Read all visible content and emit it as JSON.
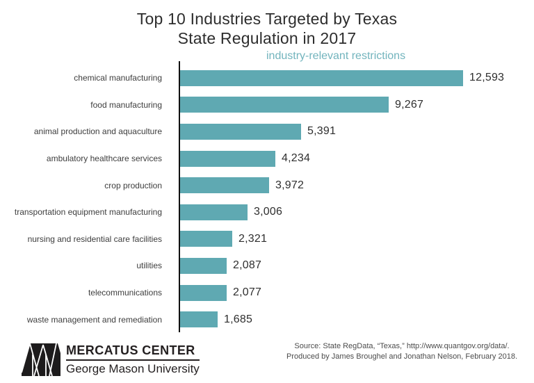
{
  "header": {
    "title_line1": "Top 10 Industries Targeted by Texas",
    "title_line2": "State Regulation in 2017",
    "subtitle": "industry-relevant restrictions"
  },
  "chart_data": {
    "type": "bar",
    "orientation": "horizontal",
    "title": "Top 10 Industries Targeted by Texas State Regulation in 2017",
    "series_label": "industry-relevant restrictions",
    "categories": [
      "chemical manufacturing",
      "food manufacturing",
      "animal production and aquaculture",
      "ambulatory healthcare services",
      "crop production",
      "transportation equipment manufacturing",
      "nursing and residential care facilities",
      "utilities",
      "telecommunications",
      "waste management and remediation"
    ],
    "values": [
      12593,
      9267,
      5391,
      4234,
      3972,
      3006,
      2321,
      2087,
      2077,
      1685
    ],
    "value_labels": [
      "12,593",
      "9,267",
      "5,391",
      "4,234",
      "3,972",
      "3,006",
      "2,321",
      "2,087",
      "2,077",
      "1,685"
    ],
    "xlim": [
      0,
      12593
    ],
    "grid": false,
    "legend_position": "none",
    "bar_color": "#5fa9b2",
    "subtitle_color": "#72b4bd",
    "axis_color": "#111111"
  },
  "footer": {
    "logo_icon": "mercatus-triangles-logo",
    "logo_line1": "MERCATUS CENTER",
    "logo_line2": "George Mason University",
    "source_line1": "Source: State RegData, “Texas,” http://www.quantgov.org/data/.",
    "source_line2": "Produced by James Broughel and Jonathan Nelson, February 2018."
  }
}
